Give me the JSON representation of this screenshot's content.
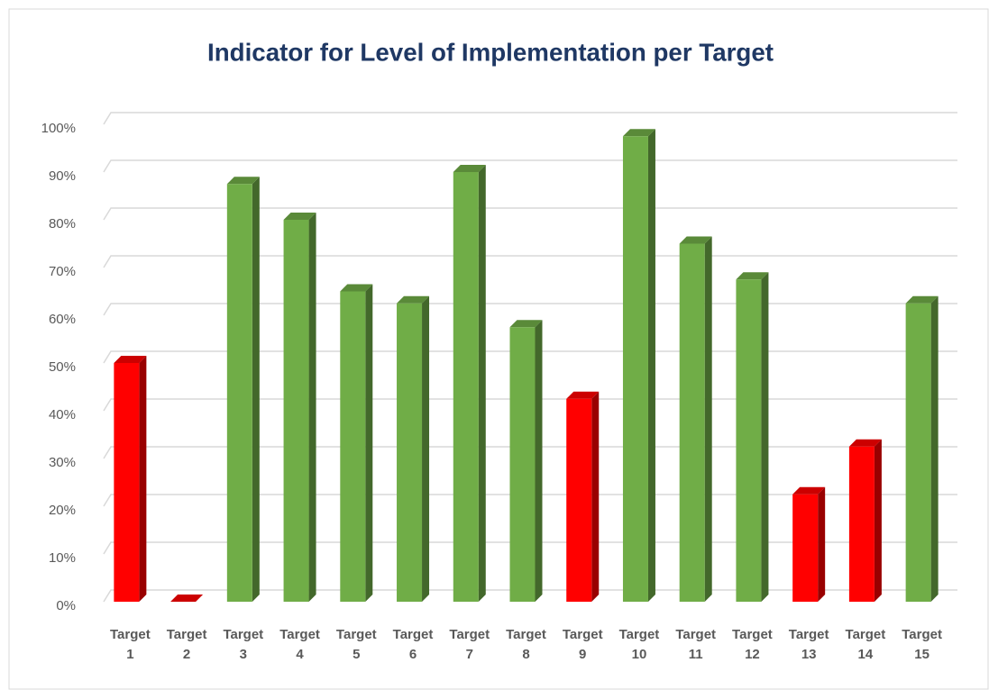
{
  "chart_data": {
    "type": "bar",
    "title": "Indicator for Level of Implementation per Target",
    "categories": [
      "Target 1",
      "Target 2",
      "Target 3",
      "Target 4",
      "Target 5",
      "Target 6",
      "Target 7",
      "Target 8",
      "Target 9",
      "Target 10",
      "Target 11",
      "Target 12",
      "Target 13",
      "Target 14",
      "Target 15"
    ],
    "values": [
      50,
      0,
      87.5,
      80,
      65,
      62.5,
      90,
      57.5,
      42.5,
      97.5,
      75,
      67.5,
      22.5,
      32.5,
      62.5
    ],
    "colors": [
      "#ff0000",
      "#ff0000",
      "#70ad47",
      "#70ad47",
      "#70ad47",
      "#70ad47",
      "#70ad47",
      "#70ad47",
      "#ff0000",
      "#70ad47",
      "#70ad47",
      "#70ad47",
      "#ff0000",
      "#ff0000",
      "#70ad47"
    ],
    "ylim": [
      0,
      100
    ],
    "yticks": [
      {
        "value": 0,
        "label": "0%"
      },
      {
        "value": 10,
        "label": "10%"
      },
      {
        "value": 20,
        "label": "20%"
      },
      {
        "value": 30,
        "label": "30%"
      },
      {
        "value": 40,
        "label": "40%"
      },
      {
        "value": 50,
        "label": "50%"
      },
      {
        "value": 60,
        "label": "60%"
      },
      {
        "value": 70,
        "label": "70%"
      },
      {
        "value": 80,
        "label": "80%"
      },
      {
        "value": 90,
        "label": "90%"
      },
      {
        "value": 100,
        "label": "100%"
      }
    ],
    "grid": true
  }
}
